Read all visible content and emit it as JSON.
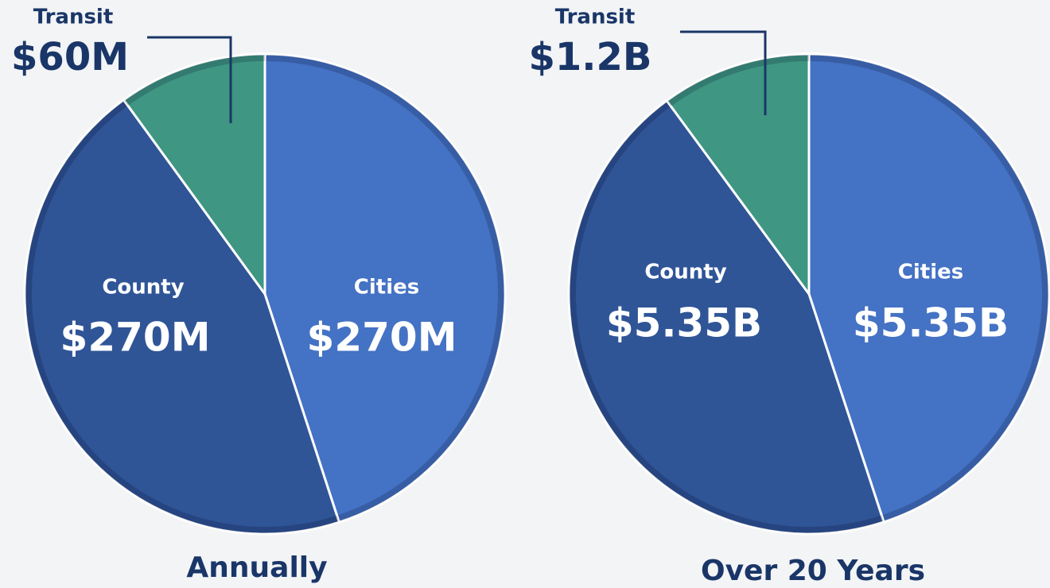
{
  "chart_data": [
    {
      "type": "pie",
      "title": "Annually",
      "categories": [
        "Cities",
        "County",
        "Transit"
      ],
      "values": [
        270,
        270,
        60
      ],
      "value_labels": [
        "$270M",
        "$270M",
        "$60M"
      ],
      "colors": [
        "#4472c4",
        "#2f5597",
        "#3f9683"
      ]
    },
    {
      "type": "pie",
      "title": "Over 20 Years",
      "categories": [
        "Cities",
        "County",
        "Transit"
      ],
      "values": [
        5.35,
        5.35,
        1.2
      ],
      "value_labels": [
        "$5.35B",
        "$5.35B",
        "$1.2B"
      ],
      "colors": [
        "#4472c4",
        "#2f5597",
        "#3f9683"
      ]
    }
  ]
}
